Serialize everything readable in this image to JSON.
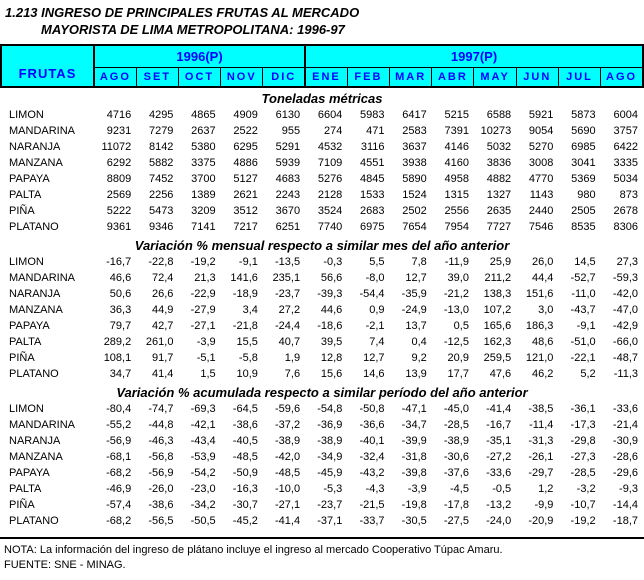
{
  "title": {
    "line1": "1.213 INGRESO DE PRINCIPALES FRUTAS AL MERCADO",
    "line2": "MAYORISTA DE LIMA METROPOLITANA: 1996-97"
  },
  "colors": {
    "header_bg": "#00ffff",
    "header_text": "#0000ff",
    "border": "#000000"
  },
  "table": {
    "frutas_label": "FRUTAS",
    "year_groups": [
      {
        "label": "1996(P)",
        "months": [
          "AGO",
          "SET",
          "OCT",
          "NOV",
          "DIC"
        ]
      },
      {
        "label": "1997(P)",
        "months": [
          "ENE",
          "FEB",
          "MAR",
          "ABR",
          "MAY",
          "JUN",
          "JUL",
          "AGO"
        ]
      }
    ],
    "sections": [
      {
        "heading": "Toneladas métricas",
        "rows": [
          {
            "fruit": "LIMON",
            "values": [
              "4716",
              "4295",
              "4865",
              "4909",
              "6130",
              "6604",
              "5983",
              "6417",
              "5215",
              "6588",
              "5921",
              "5873",
              "6004"
            ]
          },
          {
            "fruit": "MANDARINA",
            "values": [
              "9231",
              "7279",
              "2637",
              "2522",
              "955",
              "274",
              "471",
              "2583",
              "7391",
              "10273",
              "9054",
              "5690",
              "3757"
            ]
          },
          {
            "fruit": "NARANJA",
            "values": [
              "11072",
              "8142",
              "5380",
              "6295",
              "5291",
              "4532",
              "3116",
              "3637",
              "4146",
              "5032",
              "5270",
              "6985",
              "6422"
            ]
          },
          {
            "fruit": "MANZANA",
            "values": [
              "6292",
              "5882",
              "3375",
              "4886",
              "5939",
              "7109",
              "4551",
              "3938",
              "4160",
              "3836",
              "3008",
              "3041",
              "3335"
            ]
          },
          {
            "fruit": "PAPAYA",
            "values": [
              "8809",
              "7452",
              "3700",
              "5127",
              "4683",
              "5276",
              "4845",
              "5890",
              "4958",
              "4882",
              "4770",
              "5369",
              "5034"
            ]
          },
          {
            "fruit": "PALTA",
            "values": [
              "2569",
              "2256",
              "1389",
              "2621",
              "2243",
              "2128",
              "1533",
              "1524",
              "1315",
              "1327",
              "1143",
              "980",
              "873"
            ]
          },
          {
            "fruit": "PIÑA",
            "values": [
              "5222",
              "5473",
              "3209",
              "3512",
              "3670",
              "3524",
              "2683",
              "2502",
              "2556",
              "2635",
              "2440",
              "2505",
              "2678"
            ]
          },
          {
            "fruit": "PLATANO",
            "values": [
              "9361",
              "9346",
              "7141",
              "7217",
              "6251",
              "7740",
              "6975",
              "7654",
              "7954",
              "7727",
              "7546",
              "8535",
              "8306"
            ]
          }
        ]
      },
      {
        "heading": "Variación % mensual respecto a similar mes del año anterior",
        "rows": [
          {
            "fruit": "LIMON",
            "values": [
              "-16,7",
              "-22,8",
              "-19,2",
              "-9,1",
              "-13,5",
              "-0,3",
              "5,5",
              "7,8",
              "-11,9",
              "25,9",
              "26,0",
              "14,5",
              "27,3"
            ]
          },
          {
            "fruit": "MANDARINA",
            "values": [
              "46,6",
              "72,4",
              "21,3",
              "141,6",
              "235,1",
              "56,6",
              "-8,0",
              "12,7",
              "39,0",
              "211,2",
              "44,4",
              "-52,7",
              "-59,3"
            ]
          },
          {
            "fruit": "NARANJA",
            "values": [
              "50,6",
              "26,6",
              "-22,9",
              "-18,9",
              "-23,7",
              "-39,3",
              "-54,4",
              "-35,9",
              "-21,2",
              "138,3",
              "151,6",
              "-11,0",
              "-42,0"
            ]
          },
          {
            "fruit": "MANZANA",
            "values": [
              "36,3",
              "44,9",
              "-27,9",
              "3,4",
              "27,2",
              "44,6",
              "0,9",
              "-24,9",
              "-13,0",
              "107,2",
              "3,0",
              "-43,7",
              "-47,0"
            ]
          },
          {
            "fruit": "PAPAYA",
            "values": [
              "79,7",
              "42,7",
              "-27,1",
              "-21,8",
              "-24,4",
              "-18,6",
              "-2,1",
              "13,7",
              "0,5",
              "165,6",
              "186,3",
              "-9,1",
              "-42,9"
            ]
          },
          {
            "fruit": "PALTA",
            "values": [
              "289,2",
              "261,0",
              "-3,9",
              "15,5",
              "40,7",
              "39,5",
              "7,4",
              "0,4",
              "-12,5",
              "162,3",
              "48,6",
              "-51,0",
              "-66,0"
            ]
          },
          {
            "fruit": "PIÑA",
            "values": [
              "108,1",
              "91,7",
              "-5,1",
              "-5,8",
              "1,9",
              "12,8",
              "12,7",
              "9,2",
              "20,9",
              "259,5",
              "121,0",
              "-22,1",
              "-48,7"
            ]
          },
          {
            "fruit": "PLATANO",
            "values": [
              "34,7",
              "41,4",
              "1,5",
              "10,9",
              "7,6",
              "15,6",
              "14,6",
              "13,9",
              "17,7",
              "47,6",
              "46,2",
              "5,2",
              "-11,3"
            ]
          }
        ]
      },
      {
        "heading": "Variación  % acumulada respecto a similar período del año anterior",
        "rows": [
          {
            "fruit": "LIMON",
            "values": [
              "-80,4",
              "-74,7",
              "-69,3",
              "-64,5",
              "-59,6",
              "-54,8",
              "-50,8",
              "-47,1",
              "-45,0",
              "-41,4",
              "-38,5",
              "-36,1",
              "-33,6"
            ]
          },
          {
            "fruit": "MANDARINA",
            "values": [
              "-55,2",
              "-44,8",
              "-42,1",
              "-38,6",
              "-37,2",
              "-36,9",
              "-36,6",
              "-34,7",
              "-28,5",
              "-16,7",
              "-11,4",
              "-17,3",
              "-21,4"
            ]
          },
          {
            "fruit": "NARANJA",
            "values": [
              "-56,9",
              "-46,3",
              "-43,4",
              "-40,5",
              "-38,9",
              "-38,9",
              "-40,1",
              "-39,9",
              "-38,9",
              "-35,1",
              "-31,3",
              "-29,8",
              "-30,9"
            ]
          },
          {
            "fruit": "MANZANA",
            "values": [
              "-68,1",
              "-56,8",
              "-53,9",
              "-48,5",
              "-42,0",
              "-34,9",
              "-32,4",
              "-31,8",
              "-30,6",
              "-27,2",
              "-26,1",
              "-27,3",
              "-28,6"
            ]
          },
          {
            "fruit": "PAPAYA",
            "values": [
              "-68,2",
              "-56,9",
              "-54,2",
              "-50,9",
              "-48,5",
              "-45,9",
              "-43,2",
              "-39,8",
              "-37,6",
              "-33,6",
              "-29,7",
              "-28,5",
              "-29,6"
            ]
          },
          {
            "fruit": "PALTA",
            "values": [
              "-46,9",
              "-26,0",
              "-23,0",
              "-16,3",
              "-10,0",
              "-5,3",
              "-4,3",
              "-3,9",
              "-4,5",
              "-0,5",
              "1,2",
              "-3,2",
              "-9,3"
            ]
          },
          {
            "fruit": "PIÑA",
            "values": [
              "-57,4",
              "-38,6",
              "-34,2",
              "-30,7",
              "-27,1",
              "-23,7",
              "-21,5",
              "-19,8",
              "-17,8",
              "-13,2",
              "-9,9",
              "-10,7",
              "-14,4"
            ]
          },
          {
            "fruit": "PLATANO",
            "values": [
              "-68,2",
              "-56,5",
              "-50,5",
              "-45,2",
              "-41,4",
              "-37,1",
              "-33,7",
              "-30,5",
              "-27,5",
              "-24,0",
              "-20,9",
              "-19,2",
              "-18,7"
            ]
          }
        ]
      }
    ]
  },
  "footer": {
    "nota": "NOTA: La información del ingreso de plátano  incluye el ingreso al mercado Cooperativo Túpac Amaru.",
    "fuente": "FUENTE: SNE - MINAG."
  }
}
